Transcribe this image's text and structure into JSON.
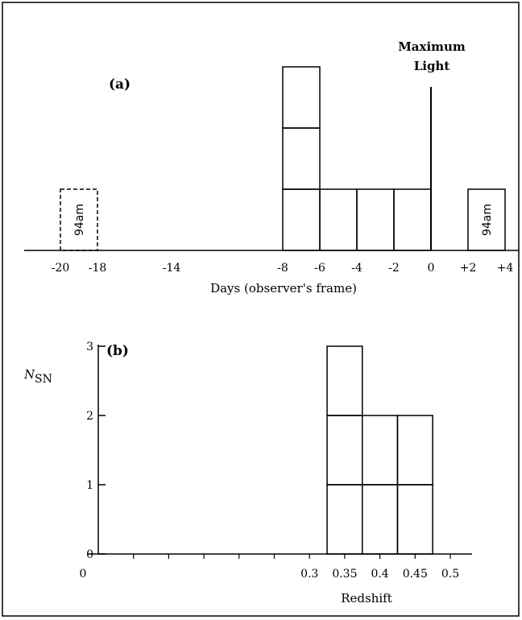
{
  "chart_data": [
    {
      "type": "bar",
      "panel_label": "(a)",
      "xlabel": "Days (observer's frame)",
      "ylabel": "",
      "xlim": [
        -22,
        4
      ],
      "ylim": [
        0,
        3
      ],
      "xticks": [
        "-20",
        "-18",
        "-14",
        "-8",
        "-6",
        "-4",
        "-2",
        "0",
        "+2",
        "+4"
      ],
      "bins": [
        {
          "x0": -8,
          "x1": -6,
          "count": 3
        },
        {
          "x0": -6,
          "x1": -4,
          "count": 1
        },
        {
          "x0": -4,
          "x1": -2,
          "count": 1
        },
        {
          "x0": -2,
          "x1": 0,
          "count": 1
        }
      ],
      "dashed_boxes": [
        {
          "x0": -20,
          "x1": -18,
          "label": "94am"
        }
      ],
      "solid_boxes": [
        {
          "x0": 2,
          "x1": 4,
          "label": "94am"
        }
      ],
      "annotation": {
        "line1": "Maximum",
        "line2": "Light",
        "x": 0
      },
      "grid": false
    },
    {
      "type": "bar",
      "panel_label": "(b)",
      "xlabel": "Redshift",
      "ylabel": "N",
      "ylabel_sub": "SN",
      "xlim": [
        0,
        0.5
      ],
      "ylim": [
        0,
        3
      ],
      "yticks": [
        "0",
        "1",
        "2",
        "3"
      ],
      "xticks": [
        "0",
        "0.3",
        "0.35",
        "0.4",
        "0.45",
        "0.5"
      ],
      "bins": [
        {
          "x0": 0.325,
          "x1": 0.375,
          "count": 3
        },
        {
          "x0": 0.375,
          "x1": 0.425,
          "count": 2
        },
        {
          "x0": 0.425,
          "x1": 0.475,
          "count": 2
        }
      ],
      "grid": false
    }
  ]
}
